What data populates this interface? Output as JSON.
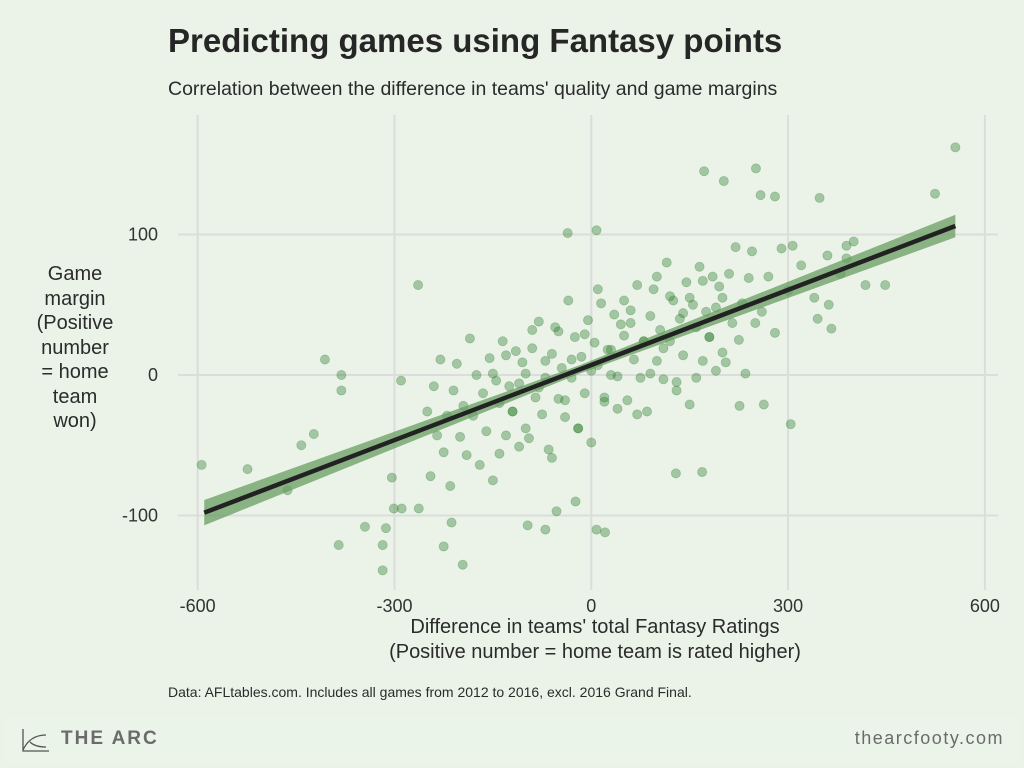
{
  "title": "Predicting games using Fantasy points",
  "subtitle": "Correlation between the difference in teams' quality and game margins",
  "caption": "Data: AFLtables.com. Includes all games from 2012 to 2016, excl. 2016 Grand Final.",
  "footer": {
    "brand": "THE ARC",
    "site": "thearcfooty.com",
    "logo_icon": "arc-curve-icon"
  },
  "colors": {
    "background": "#ebf3e9",
    "points": "#2e7d2e",
    "trend_line": "#222222",
    "confidence_band": "#6a9e62",
    "grid": "#dcdcdc"
  },
  "chart_data": {
    "type": "scatter",
    "title": "Predicting games using Fantasy points",
    "subtitle": "Correlation between the difference in teams' quality and game margins",
    "xlabel": [
      "Difference in teams' total Fantasy Ratings",
      "(Positive number = home team is rated higher)"
    ],
    "ylabel": [
      "Game",
      "margin",
      "(Positive",
      "number",
      "= home",
      "team",
      "won)"
    ],
    "xlim": [
      -630,
      620
    ],
    "ylim": [
      -153,
      185
    ],
    "x_ticks": [
      -600,
      -300,
      0,
      300,
      600
    ],
    "x_tick_labels": [
      "-600",
      "-300",
      "0",
      "300",
      "600"
    ],
    "y_ticks": [
      -100,
      0,
      100
    ],
    "y_tick_labels": [
      "-100",
      "0",
      "100"
    ],
    "grid": true,
    "legend": "none",
    "trend": {
      "type": "linear",
      "x": [
        -590,
        555
      ],
      "y": [
        -98,
        106
      ],
      "ci_halfwidth_at_ends": [
        9,
        8
      ],
      "ci_halfwidth_center": 3
    },
    "points": [
      [
        -594,
        -64
      ],
      [
        -524,
        -67
      ],
      [
        -463,
        -82
      ],
      [
        -442,
        -50
      ],
      [
        -423,
        -42
      ],
      [
        -406,
        11
      ],
      [
        -381,
        0
      ],
      [
        -381,
        -11
      ],
      [
        -385,
        -121
      ],
      [
        -345,
        -108
      ],
      [
        -318,
        -139
      ],
      [
        -318,
        -121
      ],
      [
        -313,
        -109
      ],
      [
        -301,
        -95
      ],
      [
        -289,
        -95
      ],
      [
        -263,
        -95
      ],
      [
        -304,
        -73
      ],
      [
        -264,
        64
      ],
      [
        -290,
        -4
      ],
      [
        -196,
        -135
      ],
      [
        -225,
        -122
      ],
      [
        -213,
        -105
      ],
      [
        -36,
        101
      ],
      [
        8,
        103
      ],
      [
        172,
        145
      ],
      [
        202,
        138
      ],
      [
        251,
        147
      ],
      [
        280,
        127
      ],
      [
        258,
        128
      ],
      [
        348,
        126
      ],
      [
        524,
        129
      ],
      [
        555,
        162
      ],
      [
        304,
        -35
      ],
      [
        418,
        64
      ],
      [
        448,
        64
      ],
      [
        362,
        50
      ],
      [
        366,
        33
      ],
      [
        345,
        40
      ],
      [
        -70,
        -110
      ],
      [
        8,
        -110
      ],
      [
        21,
        -112
      ],
      [
        -97,
        -107
      ],
      [
        -53,
        -97
      ],
      [
        -24,
        -90
      ],
      [
        169,
        -69
      ],
      [
        129,
        -70
      ],
      [
        226,
        -22
      ],
      [
        263,
        -21
      ],
      [
        307,
        92
      ],
      [
        389,
        92
      ],
      [
        389,
        83
      ],
      [
        -250,
        -26
      ],
      [
        -245,
        -72
      ],
      [
        -240,
        -8
      ],
      [
        -235,
        -43
      ],
      [
        -230,
        11
      ],
      [
        -225,
        -55
      ],
      [
        -220,
        -29
      ],
      [
        -215,
        -79
      ],
      [
        -210,
        -11
      ],
      [
        -205,
        8
      ],
      [
        -200,
        -44
      ],
      [
        -195,
        -22
      ],
      [
        -190,
        -57
      ],
      [
        -185,
        26
      ],
      [
        -180,
        -29
      ],
      [
        -175,
        0
      ],
      [
        -170,
        -64
      ],
      [
        -165,
        -13
      ],
      [
        -160,
        -40
      ],
      [
        -155,
        12
      ],
      [
        -150,
        -75
      ],
      [
        -145,
        -4
      ],
      [
        -140,
        -20
      ],
      [
        -135,
        24
      ],
      [
        -130,
        -43
      ],
      [
        -125,
        -8
      ],
      [
        -120,
        -26
      ],
      [
        -115,
        17
      ],
      [
        -110,
        -51
      ],
      [
        -105,
        9
      ],
      [
        -100,
        1
      ],
      [
        -95,
        -45
      ],
      [
        -90,
        19
      ],
      [
        -85,
        -16
      ],
      [
        -80,
        38
      ],
      [
        -75,
        -28
      ],
      [
        -70,
        -2
      ],
      [
        -65,
        -53
      ],
      [
        -60,
        15
      ],
      [
        -55,
        34
      ],
      [
        -50,
        -17
      ],
      [
        -45,
        5
      ],
      [
        -40,
        -30
      ],
      [
        -35,
        53
      ],
      [
        -30,
        -2
      ],
      [
        -25,
        27
      ],
      [
        -20,
        -38
      ],
      [
        -15,
        13
      ],
      [
        -10,
        -13
      ],
      [
        -5,
        39
      ],
      [
        0,
        -48
      ],
      [
        5,
        23
      ],
      [
        10,
        7
      ],
      [
        15,
        51
      ],
      [
        20,
        -16
      ],
      [
        25,
        18
      ],
      [
        30,
        0
      ],
      [
        35,
        43
      ],
      [
        40,
        -24
      ],
      [
        45,
        36
      ],
      [
        50,
        28
      ],
      [
        55,
        -18
      ],
      [
        60,
        46
      ],
      [
        65,
        11
      ],
      [
        70,
        64
      ],
      [
        75,
        -2
      ],
      [
        80,
        24
      ],
      [
        85,
        -26
      ],
      [
        90,
        42
      ],
      [
        95,
        61
      ],
      [
        100,
        10
      ],
      [
        105,
        32
      ],
      [
        110,
        -3
      ],
      [
        115,
        80
      ],
      [
        120,
        24
      ],
      [
        125,
        53
      ],
      [
        130,
        -11
      ],
      [
        135,
        40
      ],
      [
        140,
        14
      ],
      [
        145,
        66
      ],
      [
        150,
        -21
      ],
      [
        155,
        50
      ],
      [
        160,
        34
      ],
      [
        165,
        77
      ],
      [
        170,
        10
      ],
      [
        175,
        45
      ],
      [
        180,
        27
      ],
      [
        185,
        70
      ],
      [
        190,
        3
      ],
      [
        195,
        63
      ],
      [
        200,
        55
      ],
      [
        205,
        9
      ],
      [
        210,
        72
      ],
      [
        215,
        37
      ],
      [
        220,
        91
      ],
      [
        225,
        25
      ],
      [
        230,
        51
      ],
      [
        235,
        1
      ],
      [
        240,
        69
      ],
      [
        245,
        88
      ],
      [
        250,
        37
      ],
      [
        260,
        45
      ],
      [
        270,
        70
      ],
      [
        280,
        30
      ],
      [
        290,
        90
      ],
      [
        300,
        60
      ],
      [
        320,
        78
      ],
      [
        340,
        55
      ],
      [
        360,
        85
      ],
      [
        380,
        72
      ],
      [
        400,
        95
      ],
      [
        -150,
        1
      ],
      [
        -140,
        -56
      ],
      [
        -130,
        14
      ],
      [
        -120,
        -26
      ],
      [
        -110,
        -6
      ],
      [
        -100,
        -38
      ],
      [
        -90,
        32
      ],
      [
        -80,
        -9
      ],
      [
        -70,
        10
      ],
      [
        -60,
        -59
      ],
      [
        -50,
        31
      ],
      [
        -40,
        -18
      ],
      [
        -30,
        11
      ],
      [
        -20,
        -38
      ],
      [
        -10,
        29
      ],
      [
        0,
        3
      ],
      [
        10,
        61
      ],
      [
        20,
        -19
      ],
      [
        30,
        18
      ],
      [
        40,
        -1
      ],
      [
        50,
        53
      ],
      [
        60,
        37
      ],
      [
        70,
        -28
      ],
      [
        80,
        24
      ],
      [
        90,
        1
      ],
      [
        100,
        70
      ],
      [
        110,
        19
      ],
      [
        120,
        56
      ],
      [
        130,
        -5
      ],
      [
        140,
        44
      ],
      [
        150,
        55
      ],
      [
        160,
        -2
      ],
      [
        170,
        67
      ],
      [
        180,
        27
      ],
      [
        190,
        48
      ],
      [
        200,
        16
      ]
    ]
  }
}
